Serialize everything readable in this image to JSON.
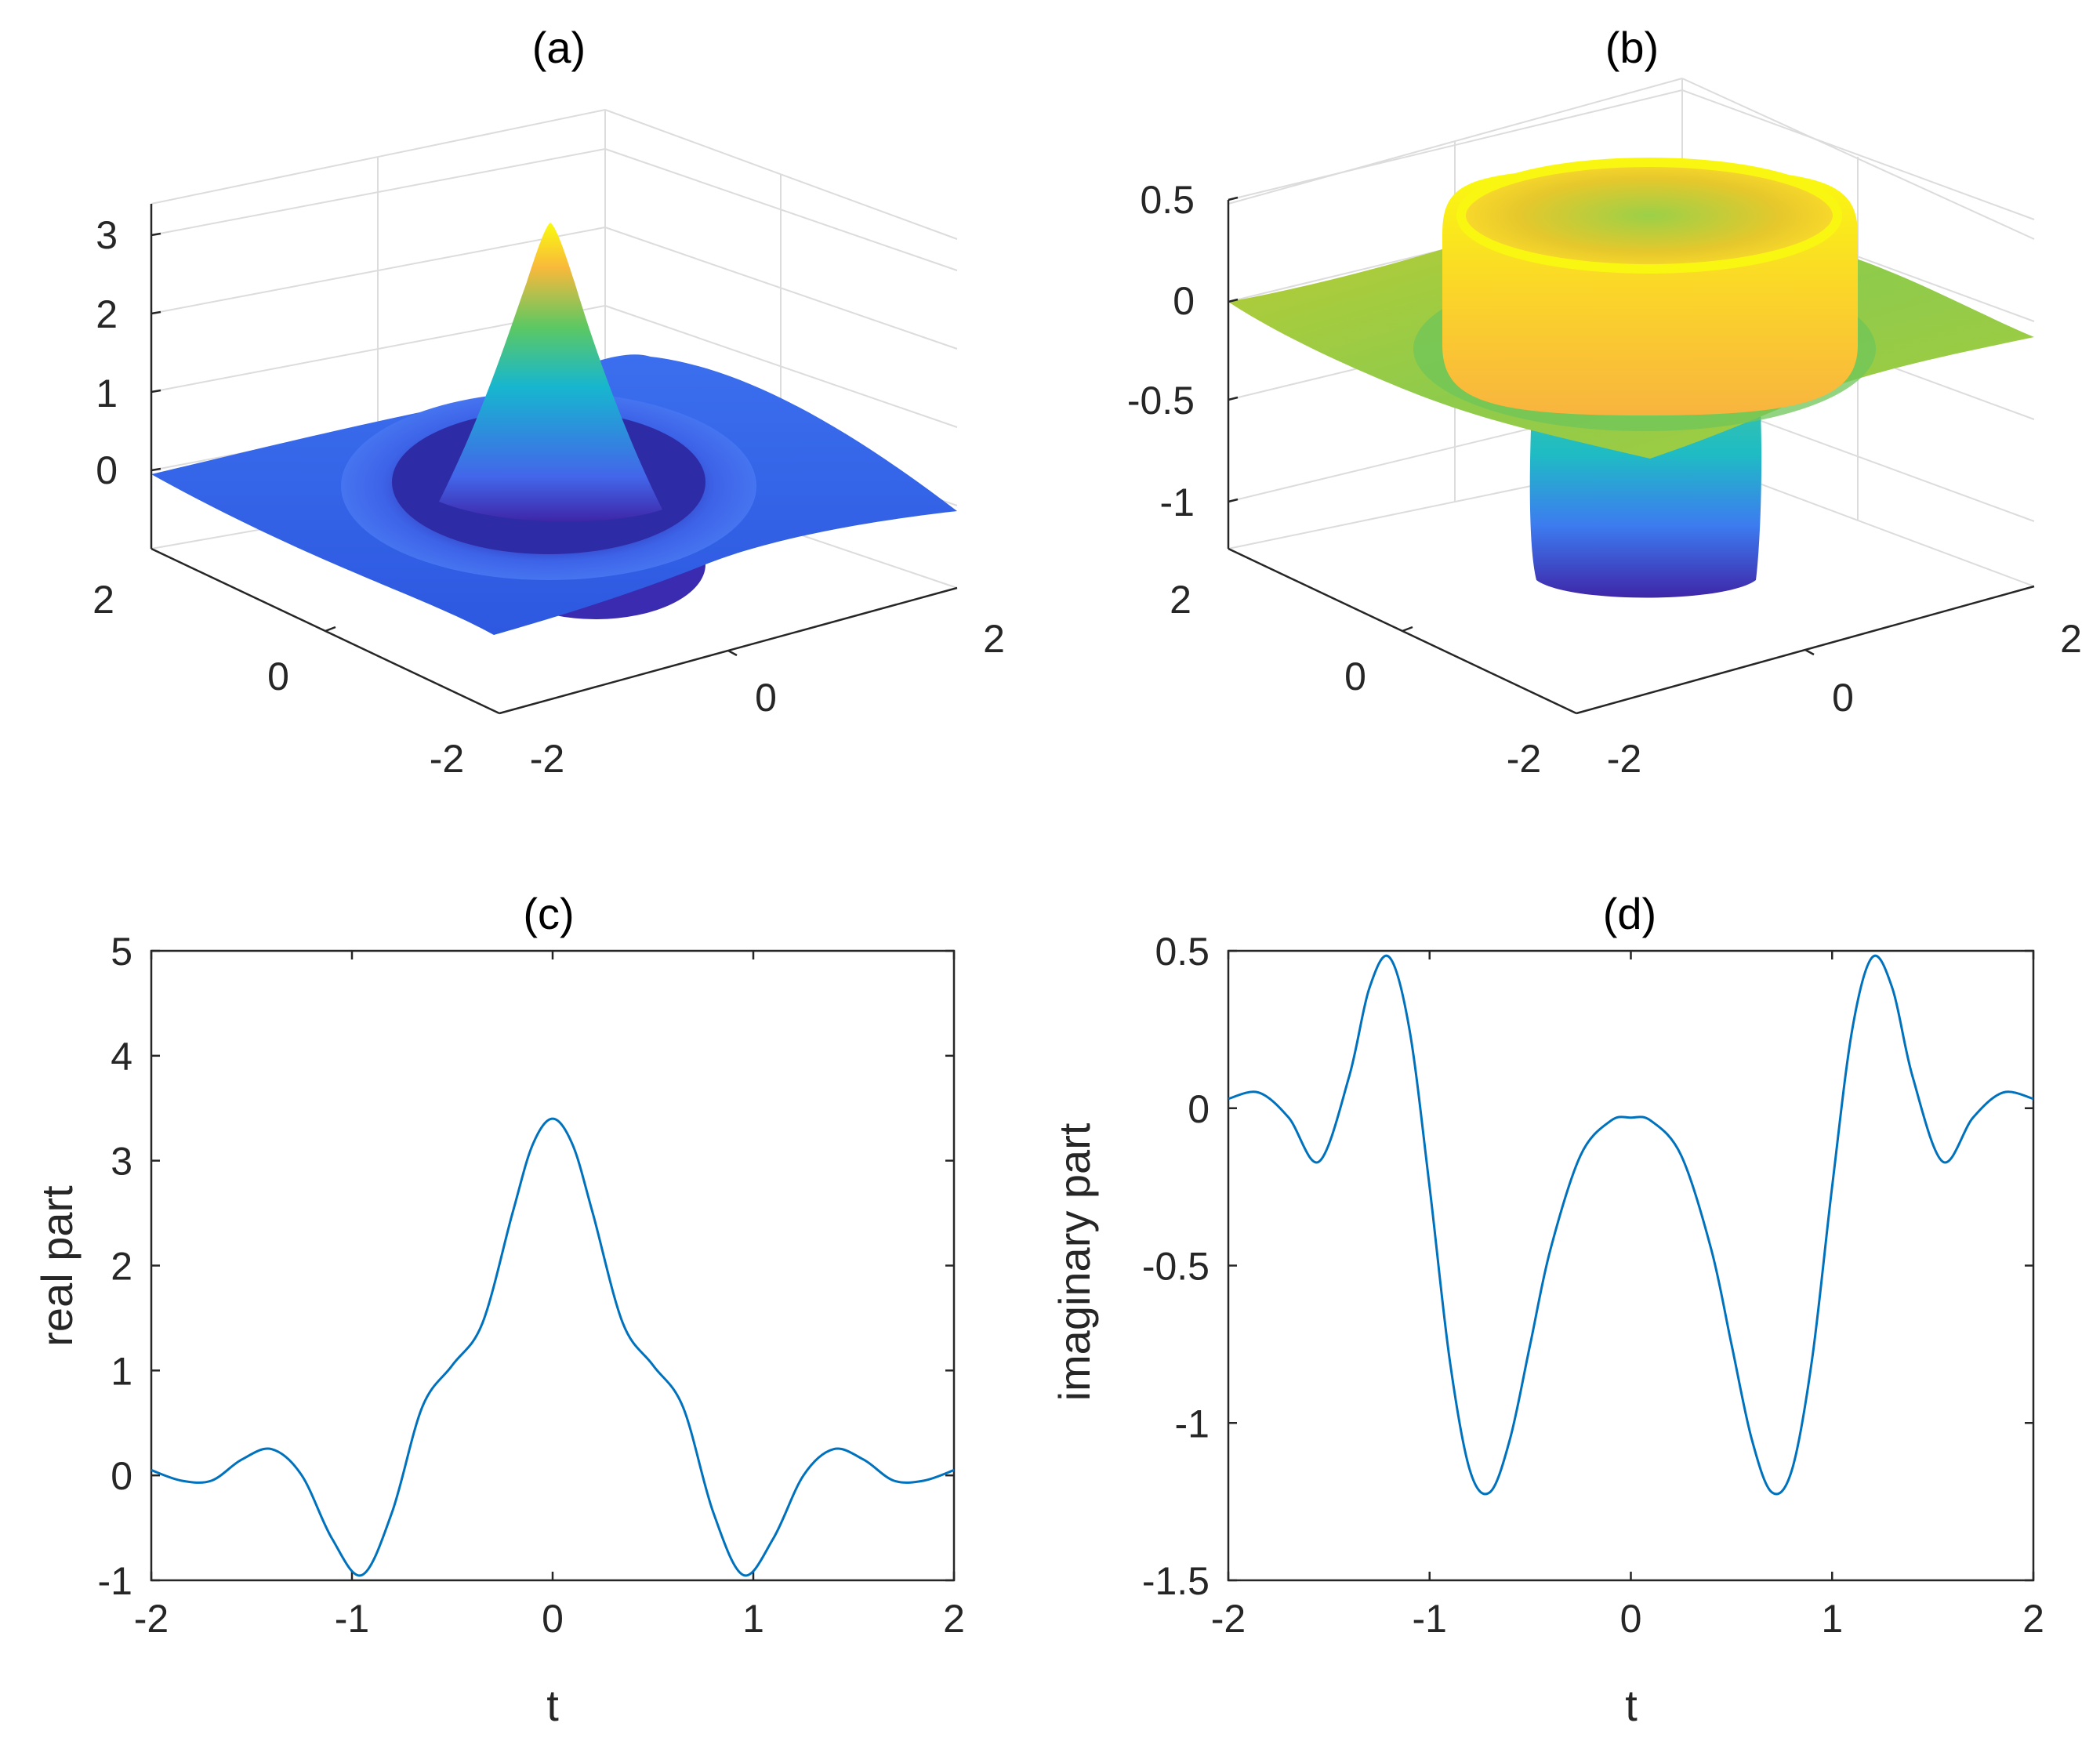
{
  "colors": {
    "line": "#0072BD",
    "axis": "#262626",
    "grid": "#dcdcdc"
  },
  "chart_data": [
    {
      "id": "a",
      "type": "surface3d",
      "title": "(a)",
      "zticks": [
        "0",
        "1",
        "2",
        "3"
      ],
      "xticks": [
        "-2",
        "0",
        "2"
      ],
      "yticks": [
        "2",
        "0",
        "-2"
      ],
      "zlim": [
        -1,
        3.5
      ],
      "peak": 3.4,
      "ring_value": -1.0
    },
    {
      "id": "b",
      "type": "surface3d",
      "title": "(b)",
      "zticks": [
        "0.5",
        "0",
        "-0.5",
        "-1"
      ],
      "xticks": [
        "-2",
        "0",
        "2"
      ],
      "yticks": [
        "2",
        "0",
        "-2"
      ],
      "zlim": [
        -1.3,
        0.5
      ],
      "top_value": 0.5,
      "bottom_value": -1.25
    },
    {
      "id": "c",
      "type": "line",
      "title": "(c)",
      "xlabel": "t",
      "ylabel": "real part",
      "xlim": [
        -2,
        2
      ],
      "ylim": [
        -1,
        5
      ],
      "xticks": [
        "-2",
        "-1",
        "0",
        "1",
        "2"
      ],
      "yticks": [
        "-1",
        "0",
        "1",
        "2",
        "3",
        "4",
        "5"
      ],
      "x": [
        -2.0,
        -1.85,
        -1.7,
        -1.55,
        -1.4,
        -1.25,
        -1.1,
        -0.95,
        -0.8,
        -0.65,
        -0.5,
        -0.35,
        -0.2,
        -0.1,
        0.0,
        0.1,
        0.2,
        0.35,
        0.5,
        0.65,
        0.8,
        0.95,
        1.1,
        1.25,
        1.4,
        1.55,
        1.7,
        1.85,
        2.0
      ],
      "y": [
        0.05,
        -0.05,
        -0.05,
        0.15,
        0.25,
        0.0,
        -0.6,
        -0.95,
        -0.35,
        0.65,
        1.05,
        1.45,
        2.5,
        3.15,
        3.4,
        3.15,
        2.5,
        1.45,
        1.05,
        0.65,
        -0.35,
        -0.95,
        -0.6,
        0.0,
        0.25,
        0.15,
        -0.05,
        -0.05,
        0.05
      ]
    },
    {
      "id": "d",
      "type": "line",
      "title": "(d)",
      "xlabel": "t",
      "ylabel": "imaginary part",
      "xlim": [
        -2,
        2
      ],
      "ylim": [
        -1.5,
        0.5
      ],
      "xticks": [
        "-2",
        "-1",
        "0",
        "1",
        "2"
      ],
      "yticks": [
        "-1.5",
        "-1",
        "-0.5",
        "0",
        "0.5"
      ],
      "x": [
        -2.0,
        -1.85,
        -1.7,
        -1.55,
        -1.4,
        -1.3,
        -1.2,
        -1.1,
        -1.0,
        -0.9,
        -0.8,
        -0.7,
        -0.6,
        -0.5,
        -0.4,
        -0.25,
        -0.1,
        0.0,
        0.1,
        0.25,
        0.4,
        0.5,
        0.6,
        0.7,
        0.8,
        0.9,
        1.0,
        1.1,
        1.2,
        1.3,
        1.4,
        1.55,
        1.7,
        1.85,
        2.0
      ],
      "y": [
        0.03,
        0.05,
        -0.03,
        -0.17,
        0.1,
        0.38,
        0.48,
        0.25,
        -0.25,
        -0.8,
        -1.15,
        -1.22,
        -1.05,
        -0.75,
        -0.45,
        -0.15,
        -0.04,
        -0.03,
        -0.04,
        -0.15,
        -0.45,
        -0.75,
        -1.05,
        -1.22,
        -1.15,
        -0.8,
        -0.25,
        0.25,
        0.48,
        0.38,
        0.1,
        -0.17,
        -0.03,
        0.05,
        0.03
      ]
    }
  ]
}
